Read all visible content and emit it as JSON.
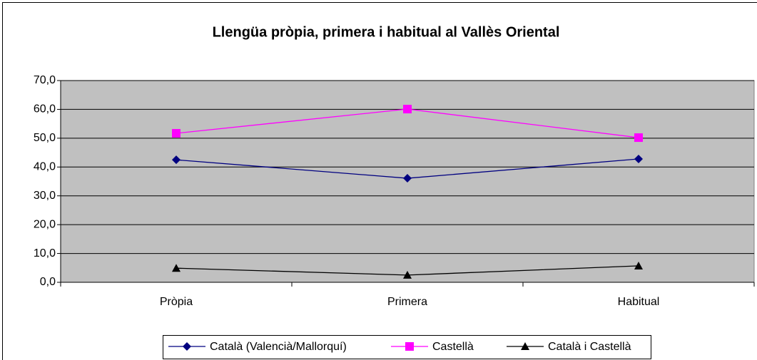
{
  "chart_data": {
    "type": "line",
    "title": "Llengüa pròpia, primera i habitual al Vallès Oriental",
    "categories": [
      "Pròpia",
      "Primera",
      "Habitual"
    ],
    "series": [
      {
        "name": "Català (Valencià/Mallorquí)",
        "color": "#000080",
        "marker": "diamond",
        "values": [
          42.5,
          36.1,
          42.8
        ]
      },
      {
        "name": "Castellà",
        "color": "#ff00ff",
        "marker": "square",
        "values": [
          51.7,
          60.1,
          50.2
        ]
      },
      {
        "name": "Català i Castellà",
        "color": "#000000",
        "marker": "triangle",
        "values": [
          4.9,
          2.5,
          5.7
        ]
      }
    ],
    "ylim": [
      0,
      70
    ],
    "yticks": [
      {
        "value": 0,
        "label": "0,0"
      },
      {
        "value": 10,
        "label": "10,0"
      },
      {
        "value": 20,
        "label": "20,0"
      },
      {
        "value": 30,
        "label": "30,0"
      },
      {
        "value": 40,
        "label": "40,0"
      },
      {
        "value": 50,
        "label": "50,0"
      },
      {
        "value": 60,
        "label": "60,0"
      },
      {
        "value": 70,
        "label": "70,0"
      }
    ],
    "grid": true,
    "legend": "bottom"
  }
}
